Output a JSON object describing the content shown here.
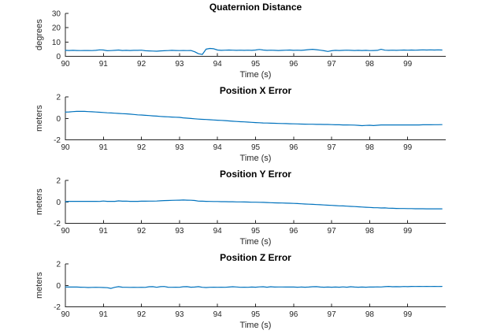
{
  "figure": {
    "background": "#ffffff",
    "axis_color": "#262626",
    "title_color": "#000000",
    "line_color": "#0072BD"
  },
  "chart_data": [
    {
      "type": "line",
      "title": "Quaternion Distance",
      "ylabel": "degrees",
      "xlabel": "Time (s)",
      "xlim": [
        90,
        100
      ],
      "ylim": [
        0,
        30
      ],
      "x_ticks": [
        90,
        91,
        92,
        93,
        94,
        95,
        96,
        97,
        98,
        99
      ],
      "y_ticks": [
        0,
        10,
        20,
        30
      ],
      "grid": false,
      "legend": null,
      "line_color": "#0072BD",
      "x_start": 90.0,
      "x_step": 0.1,
      "values": [
        4.2,
        4.1,
        4.2,
        4.1,
        4.0,
        4.1,
        4.1,
        4.0,
        4.2,
        4.5,
        4.4,
        3.9,
        4.0,
        4.2,
        4.4,
        4.1,
        4.2,
        4.1,
        4.2,
        4.2,
        4.3,
        3.9,
        3.8,
        3.7,
        3.6,
        3.8,
        3.9,
        4.0,
        4.2,
        4.1,
        4.0,
        4.1,
        4.0,
        4.1,
        3.2,
        1.8,
        1.3,
        5.0,
        5.5,
        5.3,
        4.4,
        4.2,
        4.3,
        4.4,
        4.3,
        4.2,
        4.3,
        4.2,
        4.3,
        4.2,
        4.4,
        4.8,
        4.4,
        4.2,
        4.3,
        4.2,
        4.1,
        4.2,
        4.3,
        4.4,
        4.2,
        4.3,
        4.2,
        4.4,
        4.7,
        4.9,
        4.6,
        4.3,
        3.9,
        3.4,
        3.9,
        4.2,
        4.1,
        4.2,
        4.3,
        4.2,
        4.1,
        4.2,
        4.1,
        4.2,
        4.0,
        4.1,
        4.2,
        4.9,
        4.3,
        4.2,
        4.3,
        4.2,
        4.3,
        4.4,
        4.3,
        4.4,
        4.3,
        4.4,
        4.5,
        4.4,
        4.5,
        4.4,
        4.5,
        4.4
      ]
    },
    {
      "type": "line",
      "title": "Position X Error",
      "ylabel": "meters",
      "xlabel": "Time (s)",
      "xlim": [
        90,
        100
      ],
      "ylim": [
        -2,
        2
      ],
      "x_ticks": [
        90,
        91,
        92,
        93,
        94,
        95,
        96,
        97,
        98,
        99
      ],
      "y_ticks": [
        -2,
        0,
        2
      ],
      "grid": false,
      "legend": null,
      "line_color": "#0072BD",
      "x_start": 90.0,
      "x_step": 0.1,
      "values": [
        0.58,
        0.6,
        0.63,
        0.65,
        0.66,
        0.65,
        0.63,
        0.61,
        0.59,
        0.57,
        0.55,
        0.52,
        0.5,
        0.48,
        0.46,
        0.44,
        0.42,
        0.39,
        0.36,
        0.33,
        0.31,
        0.28,
        0.26,
        0.23,
        0.21,
        0.18,
        0.16,
        0.14,
        0.12,
        0.11,
        0.09,
        0.05,
        0.02,
        -0.01,
        -0.04,
        -0.07,
        -0.09,
        -0.11,
        -0.13,
        -0.15,
        -0.17,
        -0.19,
        -0.21,
        -0.24,
        -0.27,
        -0.29,
        -0.31,
        -0.33,
        -0.35,
        -0.37,
        -0.39,
        -0.41,
        -0.43,
        -0.44,
        -0.45,
        -0.46,
        -0.47,
        -0.48,
        -0.49,
        -0.5,
        -0.51,
        -0.52,
        -0.53,
        -0.54,
        -0.55,
        -0.55,
        -0.56,
        -0.56,
        -0.57,
        -0.57,
        -0.58,
        -0.6,
        -0.6,
        -0.61,
        -0.61,
        -0.62,
        -0.63,
        -0.65,
        -0.68,
        -0.66,
        -0.64,
        -0.67,
        -0.64,
        -0.61,
        -0.61,
        -0.61,
        -0.61,
        -0.61,
        -0.61,
        -0.61,
        -0.61,
        -0.61,
        -0.61,
        -0.61,
        -0.6,
        -0.6,
        -0.6,
        -0.59,
        -0.59,
        -0.58
      ]
    },
    {
      "type": "line",
      "title": "Position Y Error",
      "ylabel": "meters",
      "xlabel": "Time (s)",
      "xlim": [
        90,
        100
      ],
      "ylim": [
        -2,
        2
      ],
      "x_ticks": [
        90,
        91,
        92,
        93,
        94,
        95,
        96,
        97,
        98,
        99
      ],
      "y_ticks": [
        -2,
        0,
        2
      ],
      "grid": false,
      "legend": null,
      "line_color": "#0072BD",
      "x_start": 90.0,
      "x_step": 0.1,
      "values": [
        0.02,
        0.05,
        0.05,
        0.05,
        0.05,
        0.05,
        0.05,
        0.05,
        0.05,
        0.04,
        0.08,
        0.05,
        0.05,
        0.05,
        0.09,
        0.06,
        0.07,
        0.05,
        0.05,
        0.05,
        0.06,
        0.06,
        0.07,
        0.07,
        0.08,
        0.1,
        0.12,
        0.13,
        0.14,
        0.15,
        0.16,
        0.17,
        0.16,
        0.15,
        0.13,
        0.07,
        0.06,
        0.05,
        0.04,
        0.03,
        0.03,
        0.02,
        0.02,
        0.01,
        0.01,
        0.0,
        0.0,
        -0.01,
        -0.02,
        -0.03,
        -0.03,
        -0.04,
        -0.05,
        -0.06,
        -0.08,
        -0.09,
        -0.1,
        -0.11,
        -0.12,
        -0.13,
        -0.14,
        -0.16,
        -0.18,
        -0.2,
        -0.22,
        -0.23,
        -0.25,
        -0.27,
        -0.29,
        -0.31,
        -0.33,
        -0.35,
        -0.37,
        -0.38,
        -0.4,
        -0.42,
        -0.44,
        -0.46,
        -0.48,
        -0.5,
        -0.52,
        -0.54,
        -0.55,
        -0.57,
        -0.56,
        -0.59,
        -0.6,
        -0.61,
        -0.62,
        -0.62,
        -0.63,
        -0.63,
        -0.64,
        -0.64,
        -0.64,
        -0.65,
        -0.65,
        -0.65,
        -0.65,
        -0.65
      ]
    },
    {
      "type": "line",
      "title": "Position Z Error",
      "ylabel": "meters",
      "xlabel": "Time (s)",
      "xlim": [
        90,
        100
      ],
      "ylim": [
        -2,
        2
      ],
      "x_ticks": [
        90,
        91,
        92,
        93,
        94,
        95,
        96,
        97,
        98,
        99
      ],
      "y_ticks": [
        -2,
        0,
        2
      ],
      "grid": false,
      "legend": null,
      "line_color": "#0072BD",
      "x_start": 90.0,
      "x_step": 0.1,
      "values": [
        -0.15,
        -0.16,
        -0.15,
        -0.16,
        -0.17,
        -0.18,
        -0.2,
        -0.19,
        -0.18,
        -0.19,
        -0.2,
        -0.22,
        -0.28,
        -0.18,
        -0.12,
        -0.17,
        -0.18,
        -0.19,
        -0.18,
        -0.19,
        -0.18,
        -0.19,
        -0.13,
        -0.12,
        -0.18,
        -0.12,
        -0.11,
        -0.17,
        -0.18,
        -0.17,
        -0.18,
        -0.13,
        -0.12,
        -0.17,
        -0.16,
        -0.12,
        -0.18,
        -0.2,
        -0.18,
        -0.17,
        -0.18,
        -0.17,
        -0.18,
        -0.16,
        -0.13,
        -0.15,
        -0.18,
        -0.17,
        -0.18,
        -0.16,
        -0.17,
        -0.14,
        -0.13,
        -0.17,
        -0.13,
        -0.16,
        -0.15,
        -0.15,
        -0.16,
        -0.15,
        -0.16,
        -0.17,
        -0.16,
        -0.17,
        -0.16,
        -0.13,
        -0.12,
        -0.16,
        -0.17,
        -0.16,
        -0.17,
        -0.16,
        -0.17,
        -0.14,
        -0.17,
        -0.13,
        -0.16,
        -0.17,
        -0.16,
        -0.17,
        -0.15,
        -0.16,
        -0.14,
        -0.15,
        -0.12,
        -0.1,
        -0.13,
        -0.12,
        -0.13,
        -0.11,
        -0.12,
        -0.1,
        -0.11,
        -0.1,
        -0.11,
        -0.1,
        -0.11,
        -0.1,
        -0.11,
        -0.1
      ]
    }
  ]
}
